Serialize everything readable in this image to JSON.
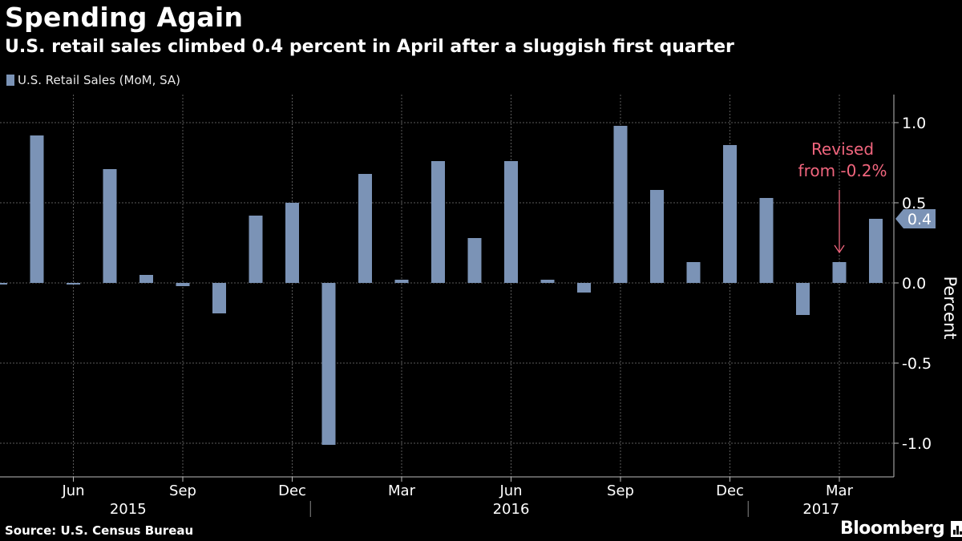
{
  "header": {
    "title": "Spending Again",
    "subtitle": "U.S. retail sales climbed 0.4 percent in April after a sluggish first quarter"
  },
  "footer": {
    "source": "Source: U.S. Census Bureau",
    "brand": "Bloomberg"
  },
  "colors": {
    "bar": "#7b93b6",
    "annotation": "#f0657d",
    "background": "#000000",
    "grid": "#5a5a5a"
  },
  "chart_data": {
    "type": "bar",
    "legend": {
      "name": "U.S. Retail Sales (MoM, SA)",
      "position": "top-left"
    },
    "ylabel": "Percent",
    "ylim": [
      -1.2,
      1.2
    ],
    "yticks": [
      -1.0,
      -0.5,
      0.0,
      0.5,
      1.0
    ],
    "ytick_labels": [
      "-1.0",
      "-0.5",
      "0.0",
      "0.5",
      "1.0"
    ],
    "grid": true,
    "categories": [
      "Apr 2015",
      "May 2015",
      "Jun 2015",
      "Jul 2015",
      "Aug 2015",
      "Sep 2015",
      "Oct 2015",
      "Nov 2015",
      "Dec 2015",
      "Jan 2016",
      "Feb 2016",
      "Mar 2016",
      "Apr 2016",
      "May 2016",
      "Jun 2016",
      "Jul 2016",
      "Aug 2016",
      "Sep 2016",
      "Oct 2016",
      "Nov 2016",
      "Dec 2016",
      "Jan 2017",
      "Feb 2017",
      "Mar 2017",
      "Apr 2017"
    ],
    "values": [
      -0.01,
      0.92,
      -0.01,
      0.71,
      0.05,
      -0.02,
      -0.19,
      0.42,
      0.5,
      -1.01,
      0.68,
      0.02,
      0.76,
      0.28,
      0.76,
      0.02,
      -0.06,
      0.98,
      0.58,
      0.13,
      0.86,
      0.53,
      -0.2,
      0.13,
      0.4
    ],
    "x_ticks": [
      {
        "label": "Jun",
        "index": 2
      },
      {
        "label": "Sep",
        "index": 5
      },
      {
        "label": "Dec",
        "index": 8
      },
      {
        "label": "Mar",
        "index": 11
      },
      {
        "label": "Jun",
        "index": 14
      },
      {
        "label": "Sep",
        "index": 17
      },
      {
        "label": "Dec",
        "index": 20
      },
      {
        "label": "Mar",
        "index": 23
      }
    ],
    "year_labels": [
      {
        "label": "2015",
        "center_index": 3.5
      },
      {
        "label": "2016",
        "center_index": 14.0
      },
      {
        "label": "2017",
        "center_index": 22.5
      }
    ],
    "year_separators": [
      8.5,
      20.5
    ],
    "last_value": {
      "label": "0.4",
      "value": 0.4
    },
    "annotation": {
      "lines": [
        "Revised",
        "from -0.2%"
      ],
      "target_index": 23,
      "target_value": 0.13
    }
  }
}
